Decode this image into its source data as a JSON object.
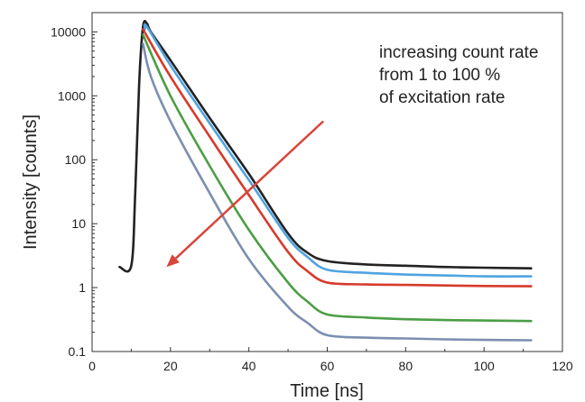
{
  "chart_data": {
    "type": "line",
    "xlabel": "Time [ns]",
    "ylabel": "Intensity [counts]",
    "xlim": [
      0,
      120
    ],
    "ylim": [
      0.1,
      20000
    ],
    "yscale": "log",
    "grid": false,
    "legend": "none",
    "x_ticks": [
      0,
      20,
      40,
      60,
      80,
      100,
      120
    ],
    "x_tick_labels": [
      "0",
      "20",
      "40",
      "60",
      "80",
      "100",
      "120"
    ],
    "y_ticks": [
      0.1,
      1,
      10,
      100,
      1000,
      10000
    ],
    "y_tick_labels": [
      "0.1",
      "1",
      "10",
      "100",
      "1000",
      "10000"
    ],
    "annotation": {
      "lines": [
        "increasing count rate",
        "from 1 to 100 %",
        "of excitation rate"
      ],
      "arrow_from": [
        59,
        400
      ],
      "arrow_to": [
        19,
        2.1
      ],
      "arrow_color": "#d8453a"
    },
    "series": [
      {
        "color": "#222222",
        "x": [
          7,
          10,
          11,
          12,
          13,
          14,
          15,
          20,
          30,
          40,
          50,
          55,
          60,
          70,
          80,
          90,
          100,
          112
        ],
        "values": [
          2.1,
          2.2,
          30,
          1500,
          12000,
          13500,
          10000,
          3600,
          450,
          60,
          7,
          3.5,
          2.6,
          2.3,
          2.2,
          2.1,
          2.05,
          2.0
        ]
      },
      {
        "color": "#4fa3e0",
        "x": [
          13.5,
          14,
          20,
          30,
          40,
          50,
          55,
          60,
          70,
          80,
          90,
          100,
          112
        ],
        "values": [
          11000,
          12000,
          3000,
          370,
          48,
          6,
          3,
          1.9,
          1.7,
          1.6,
          1.55,
          1.5,
          1.5
        ]
      },
      {
        "color": "#d63a2b",
        "x": [
          13,
          20,
          30,
          40,
          50,
          55,
          60,
          70,
          80,
          90,
          100,
          112
        ],
        "values": [
          11000,
          2000,
          230,
          28,
          3.6,
          1.8,
          1.2,
          1.12,
          1.1,
          1.08,
          1.06,
          1.05
        ]
      },
      {
        "color": "#4b9e45",
        "x": [
          13,
          20,
          30,
          40,
          50,
          55,
          60,
          70,
          80,
          90,
          100,
          112
        ],
        "values": [
          9000,
          1000,
          80,
          8,
          1.2,
          0.6,
          0.38,
          0.34,
          0.32,
          0.31,
          0.305,
          0.3
        ]
      },
      {
        "color": "#7b8fb0",
        "x": [
          13,
          15,
          20,
          30,
          40,
          50,
          55,
          60,
          70,
          80,
          90,
          100,
          112
        ],
        "values": [
          6500,
          2000,
          400,
          30,
          2.8,
          0.5,
          0.28,
          0.18,
          0.165,
          0.16,
          0.155,
          0.152,
          0.15
        ]
      }
    ]
  }
}
